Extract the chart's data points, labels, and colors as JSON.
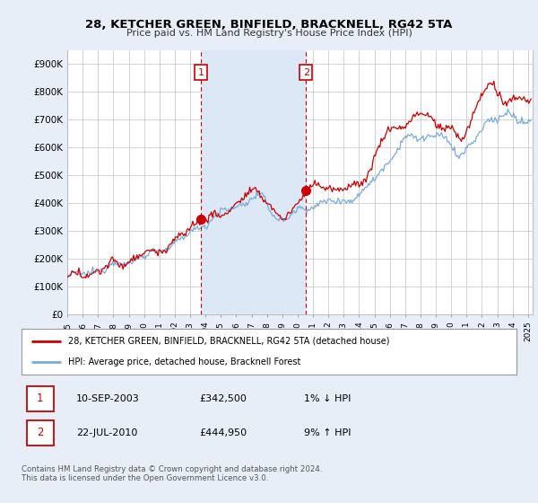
{
  "title": "28, KETCHER GREEN, BINFIELD, BRACKNELL, RG42 5TA",
  "subtitle": "Price paid vs. HM Land Registry's House Price Index (HPI)",
  "ylabel_ticks": [
    "£0",
    "£100K",
    "£200K",
    "£300K",
    "£400K",
    "£500K",
    "£600K",
    "£700K",
    "£800K",
    "£900K"
  ],
  "ytick_values": [
    0,
    100000,
    200000,
    300000,
    400000,
    500000,
    600000,
    700000,
    800000,
    900000
  ],
  "ylim": [
    0,
    950000
  ],
  "xlim_start": 1995.0,
  "xlim_end": 2025.3,
  "background_color": "#e8eef8",
  "plot_bg_color": "#ffffff",
  "grid_color": "#cccccc",
  "hpi_line_color": "#7aacdc",
  "price_line_color": "#cc0000",
  "shade_color": "#dce8f5",
  "transaction1_date": 2003.69,
  "transaction1_price": 342500,
  "transaction2_date": 2010.55,
  "transaction2_price": 444950,
  "legend_label1": "28, KETCHER GREEN, BINFIELD, BRACKNELL, RG42 5TA (detached house)",
  "legend_label2": "HPI: Average price, detached house, Bracknell Forest",
  "table_row1": [
    "1",
    "10-SEP-2003",
    "£342,500",
    "1% ↓ HPI"
  ],
  "table_row2": [
    "2",
    "22-JUL-2010",
    "£444,950",
    "9% ↑ HPI"
  ],
  "footer": "Contains HM Land Registry data © Crown copyright and database right 2024.\nThis data is licensed under the Open Government Licence v3.0.",
  "xtick_years": [
    1995,
    1996,
    1997,
    1998,
    1999,
    2000,
    2001,
    2002,
    2003,
    2004,
    2005,
    2006,
    2007,
    2008,
    2009,
    2010,
    2011,
    2012,
    2013,
    2014,
    2015,
    2016,
    2017,
    2018,
    2019,
    2020,
    2021,
    2022,
    2023,
    2024,
    2025
  ],
  "marker_color": "#cc0000",
  "box_border_color": "#cc0000"
}
